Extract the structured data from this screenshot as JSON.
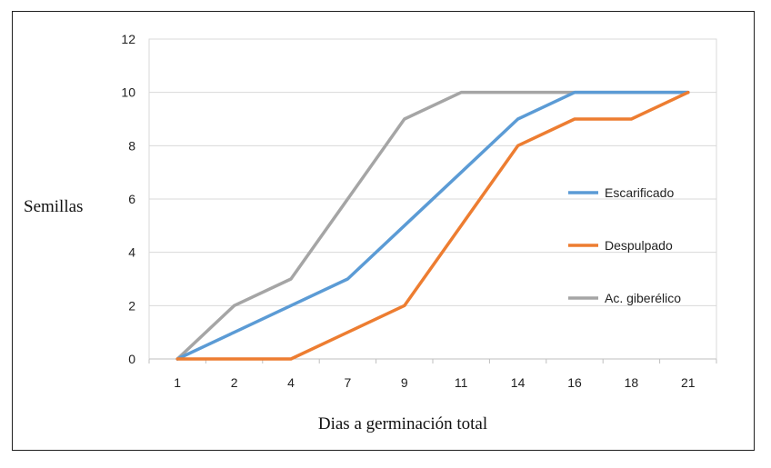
{
  "chart_data": {
    "type": "line",
    "xlabel": "Dias a germinación total",
    "ylabel": "Semillas",
    "categories": [
      "1",
      "2",
      "4",
      "7",
      "9",
      "11",
      "14",
      "16",
      "18",
      "21"
    ],
    "ylim": [
      0,
      12
    ],
    "yticks": [
      0,
      2,
      4,
      6,
      8,
      10,
      12
    ],
    "grid": true,
    "legend_position": "right",
    "series": [
      {
        "name": "Escarificado",
        "color": "#5b9bd5",
        "values": [
          0,
          1,
          2,
          3,
          5,
          7,
          9,
          10,
          10,
          10
        ]
      },
      {
        "name": "Despulpado",
        "color": "#ed7d31",
        "values": [
          0,
          0,
          0,
          1,
          2,
          5,
          8,
          9,
          9,
          10
        ]
      },
      {
        "name": "Ac. giberélico",
        "color": "#a5a5a5",
        "values": [
          0,
          2,
          3,
          6,
          9,
          10,
          10,
          10,
          10,
          10
        ]
      }
    ]
  }
}
